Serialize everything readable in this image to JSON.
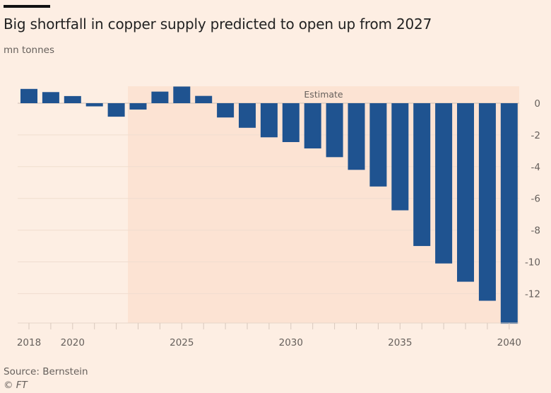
{
  "header": {
    "title": "Big shortfall in copper supply predicted to open up from 2027",
    "subtitle": "mn tonnes"
  },
  "footer": {
    "source": "Source: Bernstein",
    "copyright": "© FT"
  },
  "colors": {
    "bar": "#1f5390",
    "background": "#fdeee3",
    "estimate_shade": "#fce3d3"
  },
  "chart_data": {
    "type": "bar",
    "title": "Big shortfall in copper supply predicted to open up from 2027",
    "ylabel": "mn tonnes",
    "categories": [
      2018,
      2019,
      2020,
      2021,
      2022,
      2023,
      2024,
      2025,
      2026,
      2027,
      2028,
      2029,
      2030,
      2031,
      2032,
      2033,
      2034,
      2035,
      2036,
      2037,
      2038,
      2039,
      2040
    ],
    "values": [
      0.9,
      0.7,
      0.45,
      -0.2,
      -0.85,
      -0.4,
      0.73,
      1.05,
      0.46,
      -0.9,
      -1.55,
      -2.15,
      -2.45,
      -2.85,
      -3.4,
      -4.2,
      -5.25,
      -6.75,
      -9.0,
      -10.1,
      -11.25,
      -12.45,
      -13.9
    ],
    "ylim": [
      -13.9,
      1.1
    ],
    "yticks": [
      0,
      -2,
      -4,
      -6,
      -8,
      -10,
      -12
    ],
    "ytick_labels": [
      "0",
      "-2",
      "-4",
      "-6",
      "-8",
      "-10",
      "-12"
    ],
    "xtick_labels": [
      {
        "year": 2018,
        "label": "2018"
      },
      {
        "year": 2020,
        "label": "2020"
      },
      {
        "year": 2025,
        "label": "2025"
      },
      {
        "year": 2030,
        "label": "2030"
      },
      {
        "year": 2035,
        "label": "2035"
      },
      {
        "year": 2040,
        "label": "2040"
      }
    ],
    "annotation": {
      "label": "Estimate",
      "from_year": 2023,
      "to_year": 2040
    },
    "grid": true,
    "y_axis_side": "right"
  }
}
